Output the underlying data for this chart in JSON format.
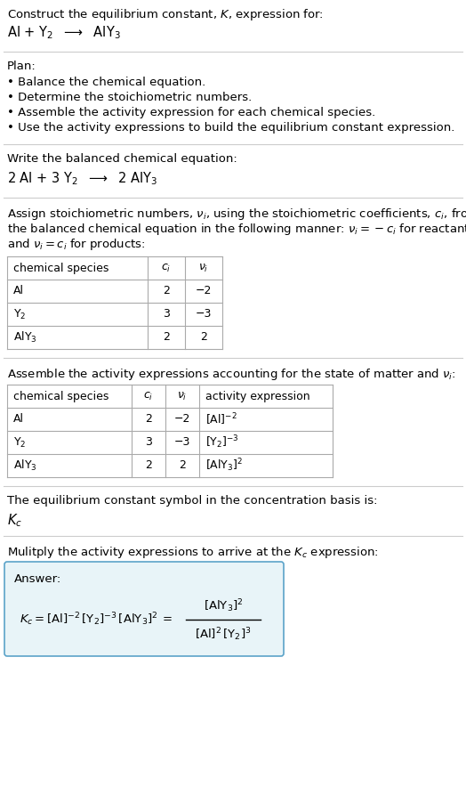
{
  "bg_color": "#ffffff",
  "text_color": "#000000",
  "section1_title": "Construct the equilibrium constant, $K$, expression for:",
  "section1_reaction": "Al + Y$_2$  $\\longrightarrow$  AlY$_3$",
  "section2_title": "Plan:",
  "section2_bullets": [
    "• Balance the chemical equation.",
    "• Determine the stoichiometric numbers.",
    "• Assemble the activity expression for each chemical species.",
    "• Use the activity expressions to build the equilibrium constant expression."
  ],
  "section3_title": "Write the balanced chemical equation:",
  "section3_equation": "2 Al + 3 Y$_2$  $\\longrightarrow$  2 AlY$_3$",
  "section4_intro_lines": [
    "Assign stoichiometric numbers, $\\nu_i$, using the stoichiometric coefficients, $c_i$, from",
    "the balanced chemical equation in the following manner: $\\nu_i = -c_i$ for reactants",
    "and $\\nu_i = c_i$ for products:"
  ],
  "table1_headers": [
    "chemical species",
    "$c_i$",
    "$\\nu_i$"
  ],
  "table1_rows": [
    [
      "Al",
      "2",
      "−2"
    ],
    [
      "Y$_2$",
      "3",
      "−3"
    ],
    [
      "AlY$_3$",
      "2",
      "2"
    ]
  ],
  "section5_intro": "Assemble the activity expressions accounting for the state of matter and $\\nu_i$:",
  "table2_headers": [
    "chemical species",
    "$c_i$",
    "$\\nu_i$",
    "activity expression"
  ],
  "table2_rows": [
    [
      "Al",
      "2",
      "−2",
      "[Al]$^{-2}$"
    ],
    [
      "Y$_2$",
      "3",
      "−3",
      "[Y$_2$]$^{-3}$"
    ],
    [
      "AlY$_3$",
      "2",
      "2",
      "[AlY$_3$]$^{2}$"
    ]
  ],
  "section6_text1": "The equilibrium constant symbol in the concentration basis is:",
  "section6_text2": "$K_c$",
  "section7_intro": "Mulitply the activity expressions to arrive at the $K_c$ expression:",
  "answer_label": "Answer:",
  "answer_box_color": "#e8f4f8",
  "answer_box_border": "#5ba3c9",
  "divider_color": "#cccccc",
  "table_line_color": "#aaaaaa"
}
